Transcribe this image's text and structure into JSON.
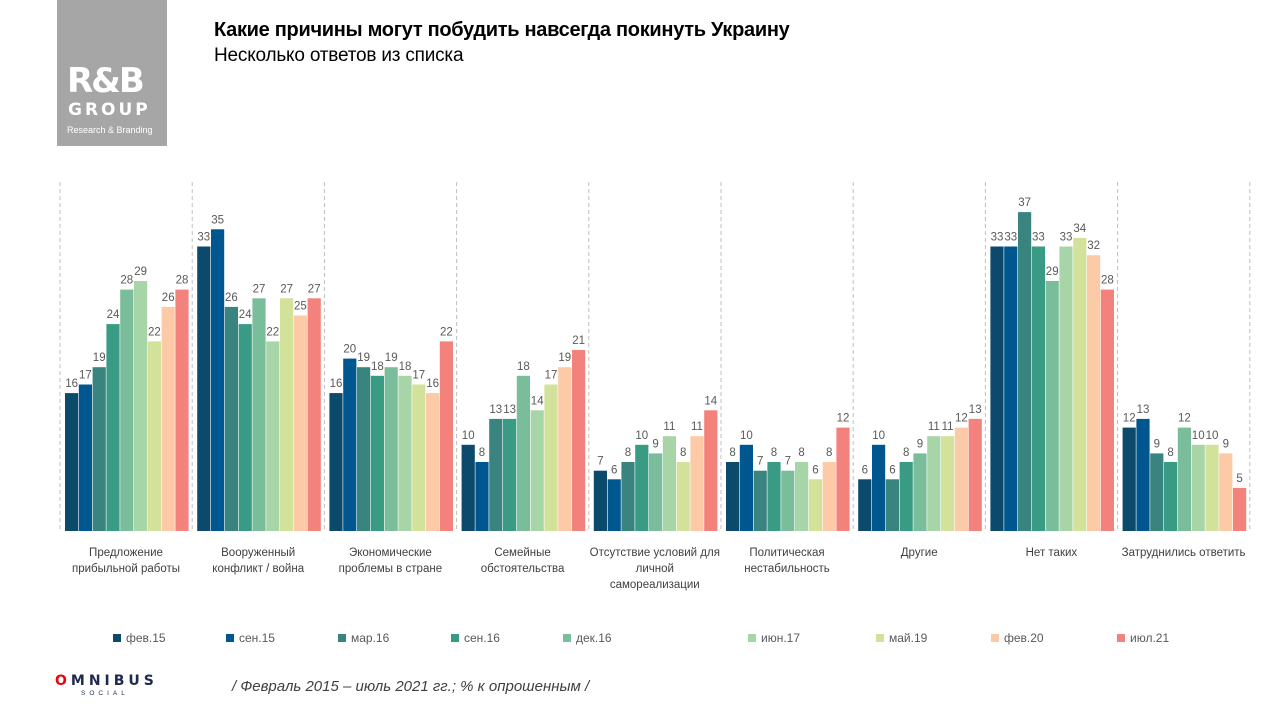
{
  "logo": {
    "line1": "R&B",
    "line2": "GROUP",
    "line3": "Research & Branding"
  },
  "header": {
    "title": "Какие причины могут побудить навсегда покинуть Украину",
    "subtitle": "Несколько ответов из списка"
  },
  "footer": {
    "brand": "OMNIBUS",
    "brand_sub": "SOCIAL",
    "note": "/ Февраль 2015 – июль 2021 гг.; % к опрошенным /"
  },
  "chart_data": {
    "type": "bar",
    "title": "Какие причины могут побудить навсегда покинуть Украину",
    "subtitle": "Несколько ответов из списка",
    "xlabel": "",
    "ylabel": "% к опрошенным",
    "ylim": [
      0,
      40
    ],
    "grid": false,
    "legend_position": "bottom",
    "categories": [
      "Предложение прибыльной работы",
      "Вооруженный конфликт / война",
      "Экономические проблемы в стране",
      "Семейные обстоятельства",
      "Отсутствие условий для личной самореализации",
      "Политическая нестабильность",
      "Другие",
      "Нет таких",
      "Затруднились ответить"
    ],
    "category_label_lines": [
      [
        "Предложение",
        "прибыльной работы"
      ],
      [
        "Вооруженный",
        "конфликт / война"
      ],
      [
        "Экономические",
        "проблемы в стране"
      ],
      [
        "Семейные",
        "обстоятельства"
      ],
      [
        "Отсутствие условий для",
        "личной",
        "самореализации"
      ],
      [
        "Политическая",
        "нестабильность"
      ],
      [
        "Другие"
      ],
      [
        "Нет таких"
      ],
      [
        "Затруднились ответить"
      ]
    ],
    "series": [
      {
        "name": "фев.15",
        "color": "#0b4a6b",
        "values": [
          16,
          33,
          16,
          10,
          7,
          8,
          6,
          33,
          12
        ]
      },
      {
        "name": "сен.15",
        "color": "#00578f",
        "values": [
          17,
          35,
          20,
          8,
          6,
          10,
          10,
          33,
          13
        ]
      },
      {
        "name": "мар.16",
        "color": "#3a8480",
        "values": [
          19,
          26,
          19,
          13,
          8,
          7,
          6,
          37,
          9
        ]
      },
      {
        "name": "сен.16",
        "color": "#3a9b84",
        "values": [
          24,
          24,
          18,
          13,
          10,
          8,
          8,
          33,
          8
        ]
      },
      {
        "name": "дек.16",
        "color": "#7abd9a",
        "values": [
          28,
          27,
          19,
          18,
          9,
          7,
          9,
          29,
          12
        ]
      },
      {
        "name": "июн.17",
        "color": "#a8d5a7",
        "values": [
          29,
          22,
          18,
          14,
          11,
          8,
          11,
          33,
          10
        ]
      },
      {
        "name": "май.19",
        "color": "#d2e29a",
        "values": [
          22,
          27,
          17,
          17,
          8,
          6,
          11,
          34,
          10
        ]
      },
      {
        "name": "фев.20",
        "color": "#fccaa6",
        "values": [
          26,
          25,
          16,
          19,
          11,
          8,
          12,
          32,
          9
        ]
      },
      {
        "name": "июл.21",
        "color": "#f4827c",
        "values": [
          28,
          27,
          22,
          21,
          14,
          12,
          13,
          28,
          5
        ]
      }
    ]
  }
}
